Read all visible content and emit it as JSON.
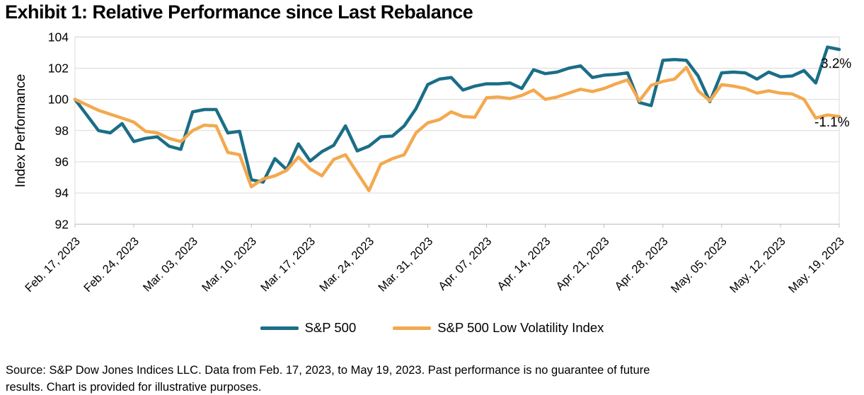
{
  "title": "Exhibit 1: Relative Performance since Last Rebalance",
  "source_note": {
    "line1": "Source: S&P Dow Jones Indices LLC. Data from Feb. 17, 2023, to May 19, 2023. Past performance is no guarantee of future",
    "line2": "results. Chart is provided for illustrative purposes."
  },
  "chart_data": {
    "type": "line",
    "title": "Exhibit 1: Relative Performance since Last Rebalance",
    "xlabel": "",
    "ylabel": "Index Performance",
    "ylim": [
      92,
      104
    ],
    "y_ticks": [
      92,
      94,
      96,
      98,
      100,
      102,
      104
    ],
    "grid": "horizontal",
    "legend_position": "bottom",
    "x_tick_labels": [
      "Feb. 17, 2023",
      "Feb. 24, 2023",
      "Mar. 03, 2023",
      "Mar. 10, 2023",
      "Mar. 17, 2023",
      "Mar. 24, 2023",
      "Mar. 31, 2023",
      "Apr. 07, 2023",
      "Apr. 14, 2023",
      "Apr. 21, 2023",
      "Apr. 28, 2023",
      "May. 05, 2023",
      "May. 12, 2023",
      "May. 19, 2023"
    ],
    "x_tick_every_n_points": 5,
    "dates": [
      "2023-02-17",
      "2023-02-20",
      "2023-02-21",
      "2023-02-22",
      "2023-02-23",
      "2023-02-24",
      "2023-02-27",
      "2023-02-28",
      "2023-03-01",
      "2023-03-02",
      "2023-03-03",
      "2023-03-06",
      "2023-03-07",
      "2023-03-08",
      "2023-03-09",
      "2023-03-10",
      "2023-03-13",
      "2023-03-14",
      "2023-03-15",
      "2023-03-16",
      "2023-03-17",
      "2023-03-20",
      "2023-03-21",
      "2023-03-22",
      "2023-03-23",
      "2023-03-24",
      "2023-03-27",
      "2023-03-28",
      "2023-03-29",
      "2023-03-30",
      "2023-03-31",
      "2023-04-03",
      "2023-04-04",
      "2023-04-05",
      "2023-04-06",
      "2023-04-07",
      "2023-04-10",
      "2023-04-11",
      "2023-04-12",
      "2023-04-13",
      "2023-04-14",
      "2023-04-17",
      "2023-04-18",
      "2023-04-19",
      "2023-04-20",
      "2023-04-21",
      "2023-04-24",
      "2023-04-25",
      "2023-04-26",
      "2023-04-27",
      "2023-04-28",
      "2023-05-01",
      "2023-05-02",
      "2023-05-03",
      "2023-05-04",
      "2023-05-05",
      "2023-05-08",
      "2023-05-09",
      "2023-05-10",
      "2023-05-11",
      "2023-05-12",
      "2023-05-15",
      "2023-05-16",
      "2023-05-17",
      "2023-05-18",
      "2023-05-19"
    ],
    "series": [
      {
        "name": "S&P 500",
        "color": "#1b6e86",
        "final_label": "3.2%",
        "values": [
          100.0,
          99.0,
          98.0,
          97.85,
          98.45,
          97.3,
          97.5,
          97.6,
          97.0,
          96.8,
          99.2,
          99.35,
          99.35,
          97.85,
          97.95,
          94.85,
          94.7,
          96.2,
          95.5,
          97.15,
          96.05,
          96.65,
          97.05,
          98.3,
          96.7,
          97.0,
          97.6,
          97.65,
          98.3,
          99.4,
          100.95,
          101.3,
          101.4,
          100.6,
          100.85,
          101.0,
          101.0,
          101.05,
          100.7,
          101.9,
          101.65,
          101.75,
          102.0,
          102.15,
          101.4,
          101.55,
          101.6,
          101.7,
          99.8,
          99.6,
          102.5,
          102.55,
          102.5,
          101.5,
          99.85,
          101.7,
          101.75,
          101.7,
          101.3,
          101.75,
          101.45,
          101.5,
          101.85,
          101.05,
          103.35,
          103.2
        ]
      },
      {
        "name": "S&P 500 Low Volatility Index",
        "color": "#f3a94f",
        "final_label": "-1.1%",
        "values": [
          100.0,
          99.65,
          99.3,
          99.05,
          98.8,
          98.55,
          97.95,
          97.85,
          97.5,
          97.3,
          98.0,
          98.35,
          98.3,
          96.6,
          96.45,
          94.4,
          94.9,
          95.1,
          95.45,
          96.3,
          95.55,
          95.1,
          96.15,
          96.45,
          95.3,
          94.15,
          95.85,
          96.2,
          96.45,
          97.85,
          98.5,
          98.7,
          99.2,
          98.9,
          98.85,
          100.1,
          100.15,
          100.05,
          100.25,
          100.6,
          100.0,
          100.15,
          100.4,
          100.65,
          100.5,
          100.7,
          101.0,
          101.25,
          99.9,
          100.9,
          101.15,
          101.3,
          102.05,
          100.55,
          99.9,
          100.95,
          100.85,
          100.7,
          100.4,
          100.55,
          100.4,
          100.35,
          100.0,
          98.8,
          99.0,
          98.9
        ]
      }
    ],
    "annotations": [
      {
        "text": "3.2%",
        "series": "S&P 500",
        "position": "end-of-line"
      },
      {
        "text": "-1.1%",
        "series": "S&P 500 Low Volatility Index",
        "position": "end-of-line"
      }
    ]
  }
}
